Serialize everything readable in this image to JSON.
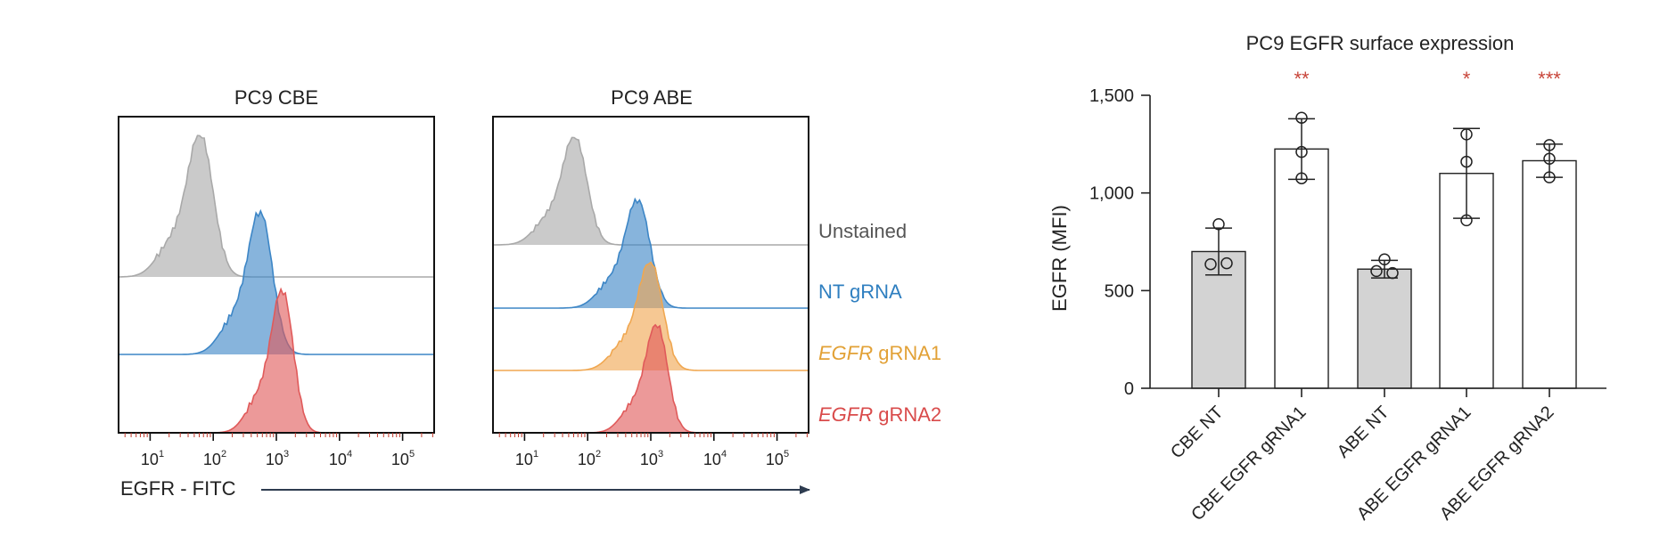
{
  "chart_data": [
    {
      "type": "histogram",
      "title": "PC9 CBE",
      "xlabel": "EGFR - FITC",
      "x_scale": "log",
      "x_ticks": [
        {
          "base": "10",
          "exp": "1"
        },
        {
          "base": "10",
          "exp": "2"
        },
        {
          "base": "10",
          "exp": "3"
        },
        {
          "base": "10",
          "exp": "4"
        },
        {
          "base": "10",
          "exp": "5"
        }
      ],
      "series": [
        {
          "name": "Unstained",
          "color": "#a9a9a9",
          "peak_log10": 1.8,
          "width": 0.2
        },
        {
          "name": "NT gRNA",
          "color": "#3d86c6",
          "peak_log10": 2.75,
          "width": 0.19
        },
        {
          "name": "EGFR gRNA2",
          "color": "#e05a5a",
          "peak_log10": 3.1,
          "width": 0.17
        }
      ]
    },
    {
      "type": "histogram",
      "title": "PC9 ABE",
      "x_scale": "log",
      "x_ticks": [
        {
          "base": "10",
          "exp": "1"
        },
        {
          "base": "10",
          "exp": "2"
        },
        {
          "base": "10",
          "exp": "3"
        },
        {
          "base": "10",
          "exp": "4"
        },
        {
          "base": "10",
          "exp": "5"
        }
      ],
      "series": [
        {
          "name": "Unstained",
          "color": "#a9a9a9",
          "peak_log10": 1.8,
          "width": 0.19
        },
        {
          "name": "NT gRNA",
          "color": "#3d86c6",
          "peak_log10": 2.8,
          "width": 0.19
        },
        {
          "name": "EGFR gRNA1",
          "color": "#f0a750",
          "peak_log10": 3.0,
          "width": 0.19
        },
        {
          "name": "EGFR gRNA2",
          "color": "#e05a5a",
          "peak_log10": 3.1,
          "width": 0.17
        }
      ]
    },
    {
      "type": "bar",
      "title": "PC9 EGFR surface expression",
      "ylabel": "EGFR (MFI)",
      "ylim": [
        0,
        1500
      ],
      "yticks": [
        0,
        500,
        1000,
        1500
      ],
      "ytick_labels": [
        "0",
        "500",
        "1,000",
        "1,500"
      ],
      "categories": [
        "CBE NT",
        "CBE EGFR gRNA1",
        "ABE NT",
        "ABE EGFR gRNA1",
        "ABE EGFR gRNA2"
      ],
      "values": [
        700,
        1225,
        610,
        1100,
        1165
      ],
      "errors": [
        120,
        155,
        45,
        230,
        85
      ],
      "fills": [
        "#d3d3d3",
        "#ffffff",
        "#d3d3d3",
        "#ffffff",
        "#ffffff"
      ],
      "points": [
        [
          840,
          635,
          640
        ],
        [
          1385,
          1210,
          1075
        ],
        [
          660,
          600,
          590
        ],
        [
          1300,
          1160,
          860
        ],
        [
          1245,
          1175,
          1080
        ]
      ],
      "significance": [
        "",
        "**",
        "",
        "*",
        "***"
      ]
    }
  ],
  "legend": [
    {
      "italic": "",
      "label": "Unstained",
      "color": "#555555"
    },
    {
      "italic": "",
      "label": "NT gRNA",
      "color": "#2f7fc0"
    },
    {
      "italic": "EGFR",
      "label": " gRNA1",
      "color": "#e2a136"
    },
    {
      "italic": "EGFR",
      "label": " gRNA2",
      "color": "#d94b4b"
    }
  ]
}
